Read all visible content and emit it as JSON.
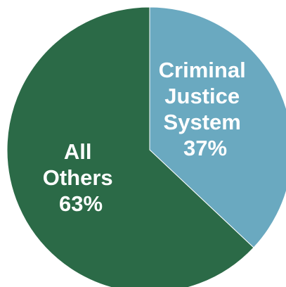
{
  "chart_data": {
    "type": "pie",
    "slices": [
      {
        "label_lines": [
          "Criminal",
          "Justice",
          "System"
        ],
        "value": 37,
        "value_label": "37%",
        "color": "#6aa9c0"
      },
      {
        "label_lines": [
          "All",
          "Others"
        ],
        "value": 63,
        "value_label": "63%",
        "color": "#2b6a47"
      }
    ]
  }
}
